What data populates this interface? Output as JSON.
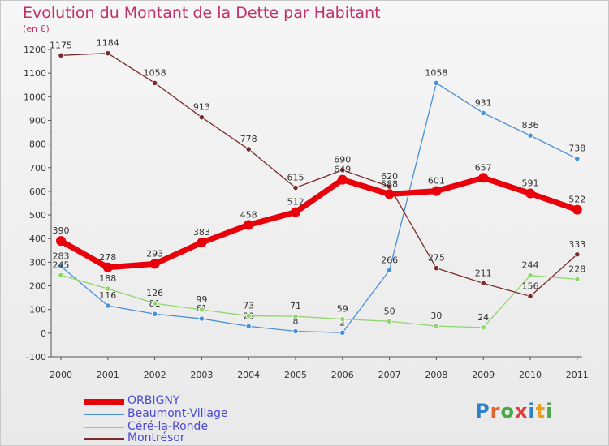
{
  "title": "Evolution du Montant de la Dette par Habitant",
  "unit_label": "(en €)",
  "logo": {
    "text": "Proxiti",
    "colors": [
      "#2f80c8",
      "#e8632a",
      "#4aa84a",
      "#e23c3c",
      "#2f80c8",
      "#e8a020",
      "#4aa84a"
    ]
  },
  "chart_data": {
    "type": "line",
    "title": "Evolution du Montant de la Dette par Habitant",
    "ylabel": "(en €)",
    "xlabel": "",
    "ylim": [
      -100,
      1200
    ],
    "y_ticks": [
      -100,
      0,
      100,
      200,
      300,
      400,
      500,
      600,
      700,
      800,
      900,
      1000,
      1100,
      1200
    ],
    "x": [
      "2000",
      "2001",
      "2002",
      "2003",
      "2004",
      "2005",
      "2006",
      "2007",
      "2008",
      "2009",
      "2010",
      "2011"
    ],
    "grid": false,
    "legend_position": "bottom-left",
    "series": [
      {
        "name": "ORBIGNY",
        "color": "#e8000b",
        "emphasis": true,
        "values": [
          390,
          278,
          293,
          383,
          458,
          512,
          649,
          588,
          601,
          657,
          591,
          522
        ],
        "labels": [
          "390",
          "278",
          "293",
          "383",
          "458",
          "512",
          "649",
          "588",
          "601",
          "657",
          "591",
          "522"
        ]
      },
      {
        "name": "Beaumont-Village",
        "color": "#4a90d9",
        "emphasis": false,
        "values": [
          283,
          116,
          81,
          61,
          29,
          8,
          2,
          266,
          1058,
          931,
          836,
          738
        ],
        "labels": [
          "283",
          "116",
          "81",
          "61",
          "29",
          "8",
          "2",
          "266",
          "1058",
          "931",
          "836",
          "738"
        ]
      },
      {
        "name": "Céré-la-Ronde",
        "color": "#8dd66a",
        "emphasis": false,
        "values": [
          245,
          188,
          126,
          99,
          73,
          71,
          59,
          50,
          30,
          24,
          244,
          228
        ],
        "labels": [
          "245",
          "188",
          "126",
          "99",
          "73",
          "71",
          "59",
          "50",
          "30",
          "24",
          "244",
          "228"
        ]
      },
      {
        "name": "Montrésor",
        "color": "#7a2a2a",
        "emphasis": false,
        "values": [
          1175,
          1184,
          1058,
          913,
          778,
          615,
          690,
          620,
          275,
          211,
          156,
          333
        ],
        "labels": [
          "1175",
          "1184",
          "1058",
          "913",
          "778",
          "615",
          "690",
          "620",
          "275",
          "211",
          "156",
          "333"
        ]
      }
    ]
  }
}
